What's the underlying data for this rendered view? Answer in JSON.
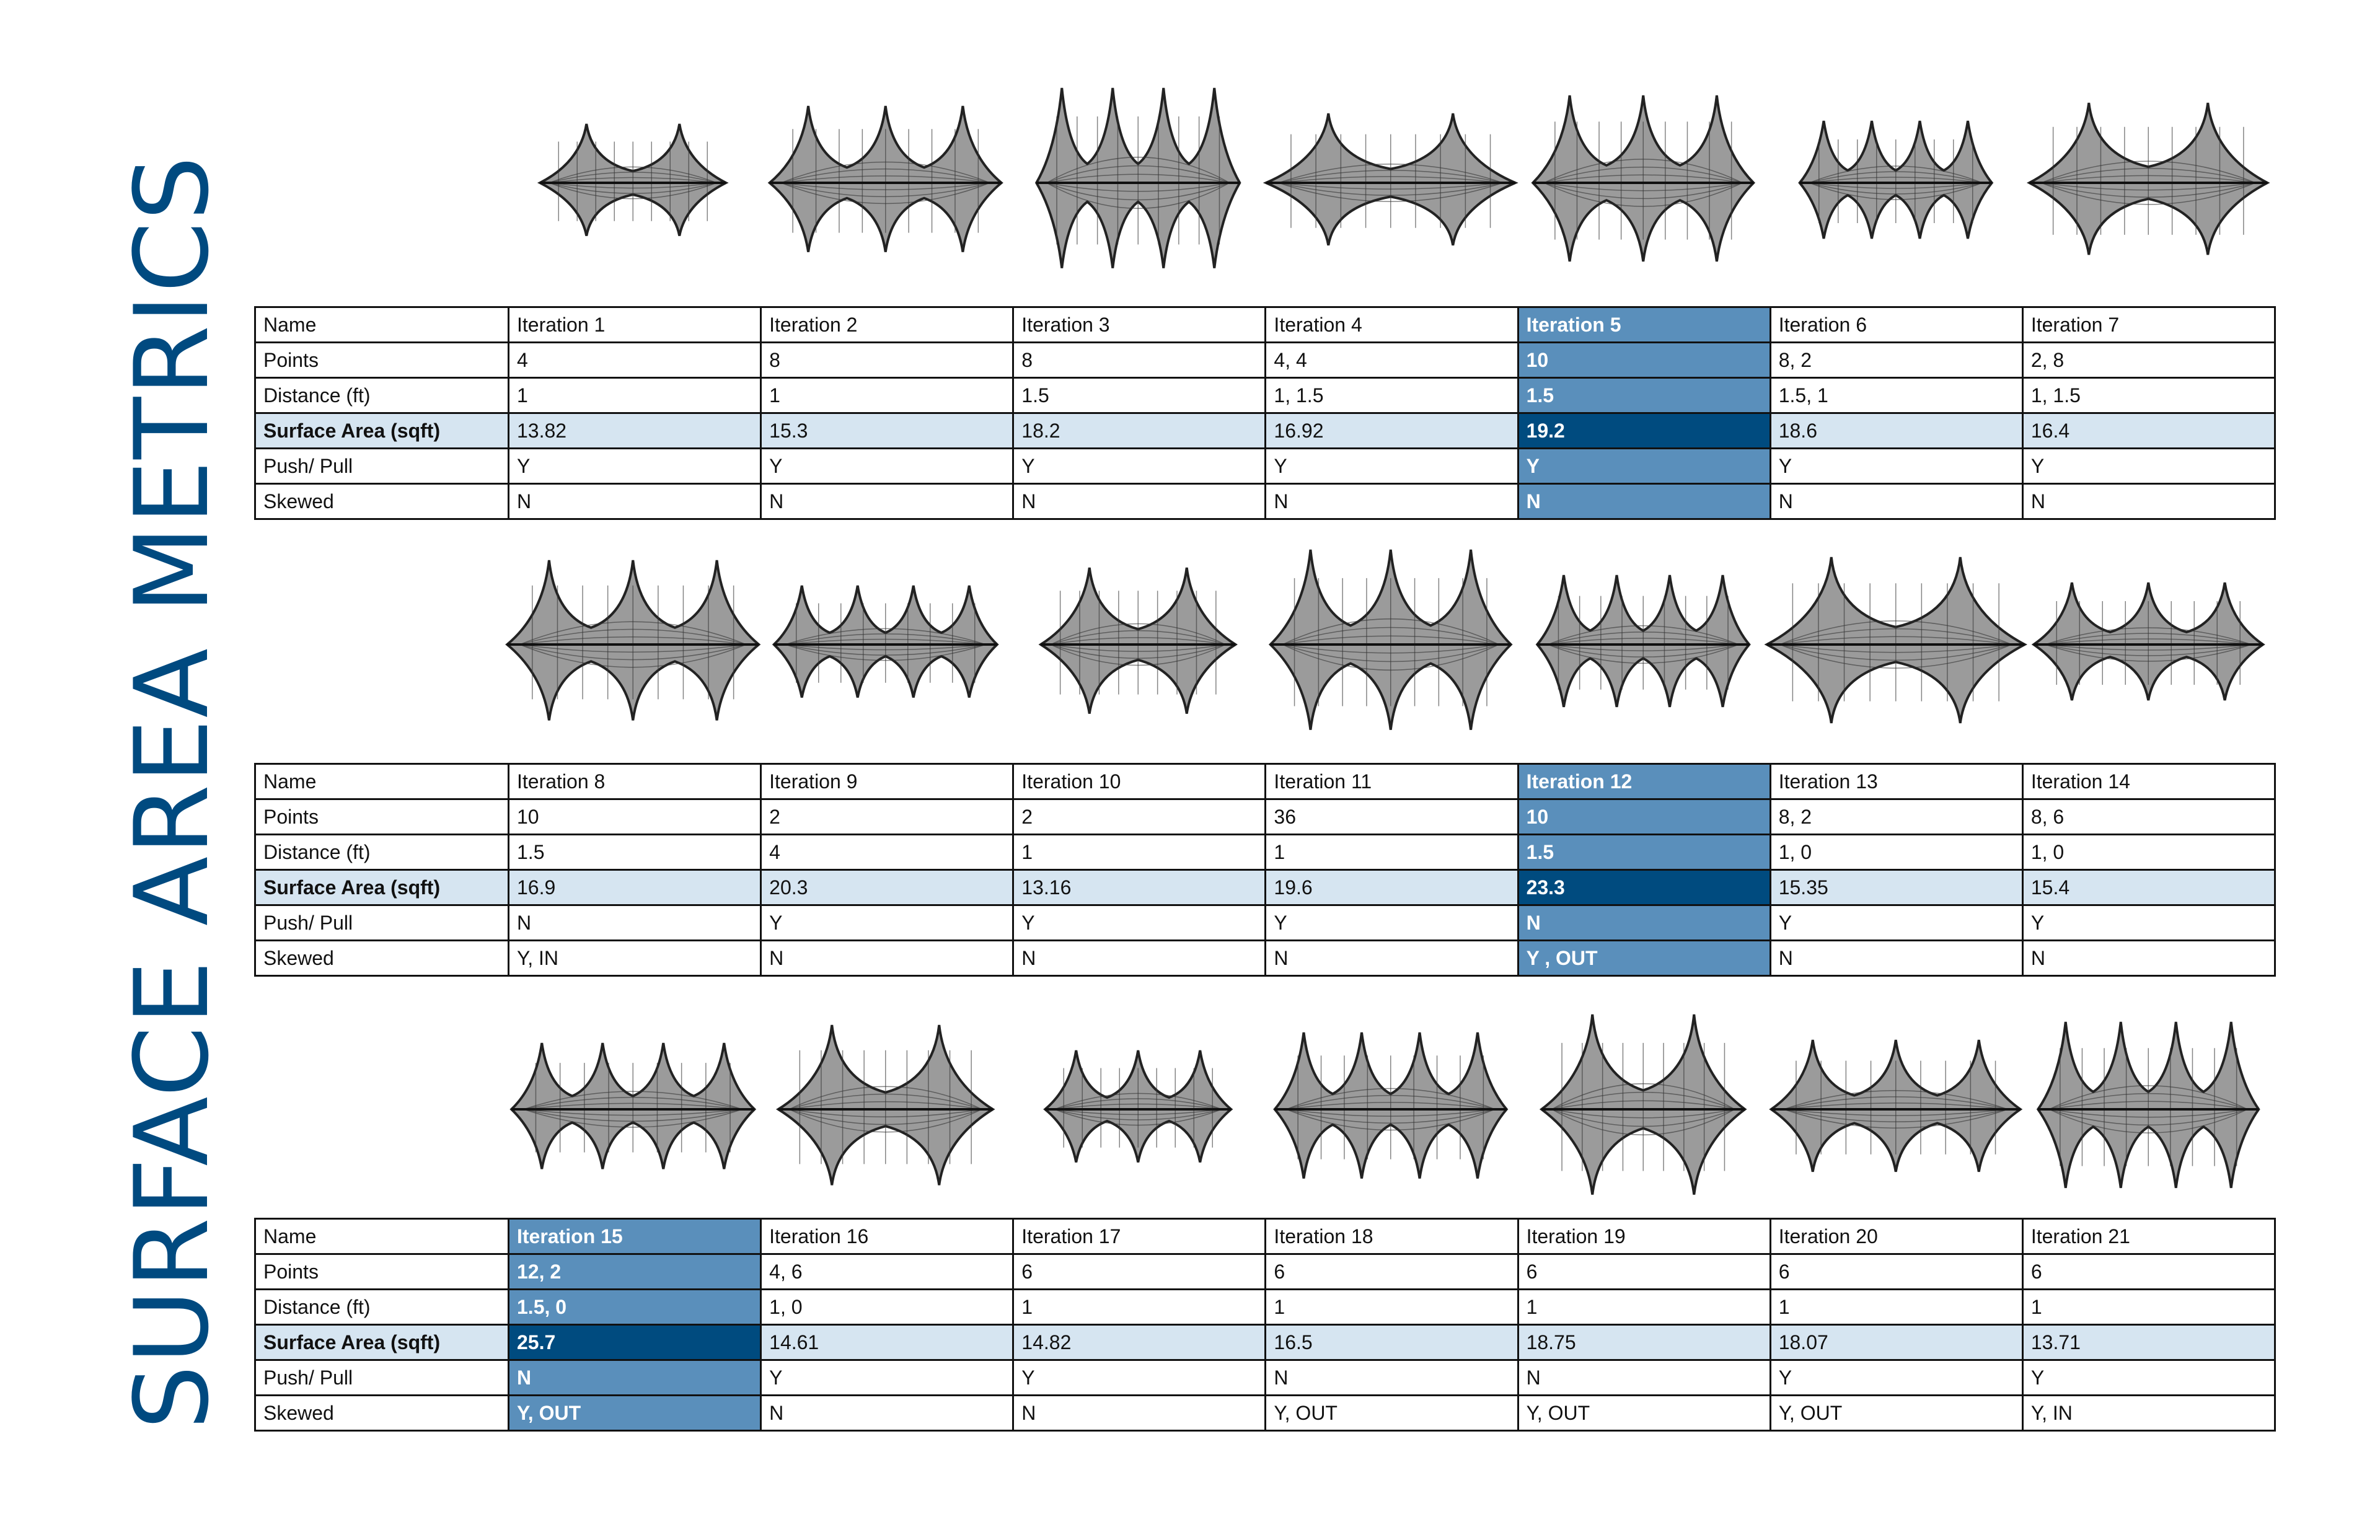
{
  "title": "SURFACE AREA METRICS",
  "colors": {
    "title": "#004a80",
    "highlight": "#5a8fbb",
    "highlight_dark": "#004b7f",
    "surface_row": "#d6e5f1"
  },
  "icons": [
    "tensile-membrane-icon"
  ],
  "tables": [
    {
      "labels": [
        "Name",
        "Points",
        "Distance (ft)",
        "Surface Area (sqft)",
        "Push/ Pull",
        "Skewed"
      ],
      "highlight_column": 4,
      "columns": [
        {
          "name": "Iteration 1",
          "points": "4",
          "distance": "1",
          "surface_area": "13.82",
          "push_pull": "Y",
          "skewed": "N"
        },
        {
          "name": "Iteration 2",
          "points": "8",
          "distance": "1",
          "surface_area": "15.3",
          "push_pull": "Y",
          "skewed": "N"
        },
        {
          "name": "Iteration 3",
          "points": "8",
          "distance": "1.5",
          "surface_area": "18.2",
          "push_pull": "Y",
          "skewed": "N"
        },
        {
          "name": "Iteration 4",
          "points": "4, 4",
          "distance": "1, 1.5",
          "surface_area": "16.92",
          "push_pull": "Y",
          "skewed": "N"
        },
        {
          "name": "Iteration 5",
          "points": "10",
          "distance": "1.5",
          "surface_area": "19.2",
          "push_pull": "Y",
          "skewed": "N"
        },
        {
          "name": "Iteration 6",
          "points": "8, 2",
          "distance": "1.5, 1",
          "surface_area": "18.6",
          "push_pull": "Y",
          "skewed": "N"
        },
        {
          "name": "Iteration 7",
          "points": "2, 8",
          "distance": "1, 1.5",
          "surface_area": "16.4",
          "push_pull": "Y",
          "skewed": "N"
        }
      ]
    },
    {
      "labels": [
        "Name",
        "Points",
        "Distance (ft)",
        "Surface Area (sqft)",
        "Push/ Pull",
        "Skewed"
      ],
      "highlight_column": 4,
      "columns": [
        {
          "name": "Iteration 8",
          "points": "10",
          "distance": "1.5",
          "surface_area": "16.9",
          "push_pull": "N",
          "skewed": "Y, IN"
        },
        {
          "name": "Iteration 9",
          "points": "2",
          "distance": "4",
          "surface_area": "20.3",
          "push_pull": "Y",
          "skewed": "N"
        },
        {
          "name": "Iteration 10",
          "points": "2",
          "distance": "1",
          "surface_area": "13.16",
          "push_pull": "Y",
          "skewed": "N"
        },
        {
          "name": "Iteration 11",
          "points": "36",
          "distance": "1",
          "surface_area": "19.6",
          "push_pull": "Y",
          "skewed": "N"
        },
        {
          "name": "Iteration 12",
          "points": "10",
          "distance": "1.5",
          "surface_area": "23.3",
          "push_pull": "N",
          "skewed": "Y , OUT"
        },
        {
          "name": "Iteration 13",
          "points": "8, 2",
          "distance": "1, 0",
          "surface_area": "15.35",
          "push_pull": "Y",
          "skewed": "N"
        },
        {
          "name": "Iteration 14",
          "points": "8, 6",
          "distance": "1, 0",
          "surface_area": "15.4",
          "push_pull": "Y",
          "skewed": "N"
        }
      ]
    },
    {
      "labels": [
        "Name",
        "Points",
        "Distance (ft)",
        "Surface Area (sqft)",
        "Push/ Pull",
        "Skewed"
      ],
      "highlight_column": 0,
      "columns": [
        {
          "name": "Iteration 15",
          "points": "12, 2",
          "distance": "1.5, 0",
          "surface_area": "25.7",
          "push_pull": "N",
          "skewed": "Y, OUT"
        },
        {
          "name": "Iteration 16",
          "points": "4, 6",
          "distance": "1, 0",
          "surface_area": "14.61",
          "push_pull": "Y",
          "skewed": "N"
        },
        {
          "name": "Iteration 17",
          "points": "6",
          "distance": "1",
          "surface_area": "14.82",
          "push_pull": "Y",
          "skewed": "N"
        },
        {
          "name": "Iteration 18",
          "points": "6",
          "distance": "1",
          "surface_area": "16.5",
          "push_pull": "N",
          "skewed": "Y, OUT"
        },
        {
          "name": "Iteration 19",
          "points": "6",
          "distance": "1",
          "surface_area": "18.75",
          "push_pull": "N",
          "skewed": "Y, OUT"
        },
        {
          "name": "Iteration 20",
          "points": "6",
          "distance": "1",
          "surface_area": "18.07",
          "push_pull": "Y",
          "skewed": "Y, OUT"
        },
        {
          "name": "Iteration 21",
          "points": "6",
          "distance": "1",
          "surface_area": "13.71",
          "push_pull": "Y",
          "skewed": "Y, IN"
        }
      ]
    }
  ]
}
